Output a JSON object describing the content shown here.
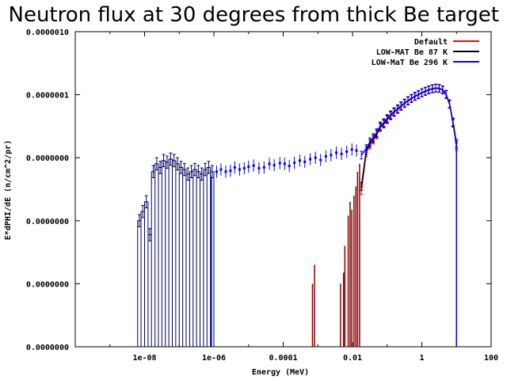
{
  "chart_data": {
    "type": "line",
    "title": "Neutron flux at 30 degrees from thick Be target",
    "xlabel": "Energy (MeV)",
    "ylabel": "E*dPHI/dE (n/cm^2/pr)",
    "x_scale": "log",
    "y_scale": "log",
    "xlim": [
      1e-10,
      100
    ],
    "ylim": [
      1e-11,
      1e-06
    ],
    "x_ticks": [
      {
        "value": 1e-08,
        "label": "1e-08"
      },
      {
        "value": 1e-06,
        "label": "1e-06"
      },
      {
        "value": 0.0001,
        "label": "0.0001"
      },
      {
        "value": 0.01,
        "label": "0.01"
      },
      {
        "value": 1,
        "label": "1"
      },
      {
        "value": 100,
        "label": "100"
      }
    ],
    "y_ticks": [
      {
        "value": 1e-11,
        "label": "0.0000000"
      },
      {
        "value": 1e-10,
        "label": "0.0000000"
      },
      {
        "value": 1e-09,
        "label": "0.0000000"
      },
      {
        "value": 1e-08,
        "label": "0.0000000"
      },
      {
        "value": 1e-07,
        "label": "0.0000001"
      },
      {
        "value": 1e-06,
        "label": "0.0000010"
      }
    ],
    "grid": false,
    "legend": "top-right",
    "series": [
      {
        "name": "Default",
        "color": "#ff0000",
        "style": "errorbars",
        "points": [
          [
            0.018,
            3e-09
          ],
          [
            0.025,
            1.2e-08
          ],
          [
            0.032,
            1.6e-08
          ],
          [
            0.04,
            1.9e-08
          ],
          [
            0.05,
            2.3e-08
          ],
          [
            0.063,
            3e-08
          ],
          [
            0.08,
            3.4e-08
          ],
          [
            0.1,
            4e-08
          ],
          [
            0.126,
            4.6e-08
          ],
          [
            0.158,
            5.2e-08
          ],
          [
            0.2,
            5.8e-08
          ],
          [
            0.251,
            6.5e-08
          ],
          [
            0.316,
            7.2e-08
          ],
          [
            0.398,
            7.9e-08
          ],
          [
            0.501,
            8.6e-08
          ],
          [
            0.631,
            9.3e-08
          ],
          [
            0.794,
            9.9e-08
          ],
          [
            1.0,
            1.06e-07
          ],
          [
            1.26,
            1.12e-07
          ],
          [
            1.58,
            1.18e-07
          ],
          [
            2.0,
            1.23e-07
          ],
          [
            2.51,
            1.26e-07
          ],
          [
            3.16,
            1.25e-07
          ],
          [
            3.98,
            1.18e-07
          ],
          [
            5.01,
            1e-07
          ],
          [
            6.31,
            7e-08
          ],
          [
            7.94,
            3.5e-08
          ],
          [
            10.0,
            1.5e-08
          ]
        ]
      },
      {
        "name": "LOW-MAT Be 87 K",
        "color": "#000000",
        "style": "errorbars",
        "points": [
          [
            0.018,
            3.5e-09
          ],
          [
            0.025,
            1.3e-08
          ],
          [
            0.032,
            1.7e-08
          ],
          [
            0.04,
            2e-08
          ],
          [
            0.05,
            2.4e-08
          ],
          [
            0.063,
            3.1e-08
          ],
          [
            0.08,
            3.5e-08
          ],
          [
            0.1,
            4.1e-08
          ],
          [
            0.126,
            4.7e-08
          ],
          [
            0.158,
            5.3e-08
          ],
          [
            0.2,
            5.9e-08
          ],
          [
            0.251,
            6.6e-08
          ],
          [
            0.316,
            7.3e-08
          ],
          [
            0.398,
            8e-08
          ],
          [
            0.501,
            8.7e-08
          ],
          [
            0.631,
            9.4e-08
          ],
          [
            0.794,
            1e-07
          ],
          [
            1.0,
            1.07e-07
          ],
          [
            1.26,
            1.13e-07
          ],
          [
            1.58,
            1.19e-07
          ],
          [
            2.0,
            1.24e-07
          ],
          [
            2.51,
            1.27e-07
          ],
          [
            3.16,
            1.26e-07
          ],
          [
            3.98,
            1.19e-07
          ],
          [
            5.01,
            1.01e-07
          ],
          [
            6.31,
            7.1e-08
          ],
          [
            7.94,
            3.6e-08
          ],
          [
            10.0,
            1.6e-08
          ]
        ]
      },
      {
        "name": "LOW-MaT Be 296 K",
        "color": "#0000ff",
        "style": "errorbars",
        "points": [
          [
            0.018,
            1.1e-08
          ],
          [
            0.025,
            1.4e-08
          ],
          [
            0.032,
            1.8e-08
          ],
          [
            0.04,
            2.1e-08
          ],
          [
            0.05,
            2.5e-08
          ],
          [
            0.063,
            3.2e-08
          ],
          [
            0.08,
            3.6e-08
          ],
          [
            0.1,
            4.2e-08
          ],
          [
            0.126,
            4.8e-08
          ],
          [
            0.158,
            5.4e-08
          ],
          [
            0.2,
            6e-08
          ],
          [
            0.251,
            6.7e-08
          ],
          [
            0.316,
            7.4e-08
          ],
          [
            0.398,
            8.1e-08
          ],
          [
            0.501,
            8.8e-08
          ],
          [
            0.631,
            9.5e-08
          ],
          [
            0.794,
            1.01e-07
          ],
          [
            1.0,
            1.08e-07
          ],
          [
            1.26,
            1.14e-07
          ],
          [
            1.58,
            1.2e-07
          ],
          [
            2.0,
            1.25e-07
          ],
          [
            2.51,
            1.28e-07
          ],
          [
            3.16,
            1.27e-07
          ],
          [
            3.98,
            1.2e-07
          ],
          [
            5.01,
            1.02e-07
          ],
          [
            6.31,
            7.2e-08
          ],
          [
            7.94,
            3.7e-08
          ],
          [
            10.0,
            1.7e-08
          ]
        ]
      }
    ],
    "histograms": [
      {
        "series": "LOW-MAT Be 87 K",
        "color": "#000060",
        "bins": [
          [
            1e-10,
            6.3e-09,
            0
          ],
          [
            6.3e-09,
            7.9e-09,
            1e-09
          ],
          [
            7.9e-09,
            1e-08,
            1.4e-09
          ],
          [
            1e-08,
            1.26e-08,
            2e-09
          ],
          [
            1.26e-08,
            1.58e-08,
            6e-10
          ],
          [
            1.58e-08,
            2e-08,
            6e-09
          ],
          [
            2e-08,
            2.51e-08,
            8e-09
          ],
          [
            2.51e-08,
            3.16e-08,
            7e-09
          ],
          [
            3.16e-08,
            3.98e-08,
            9e-09
          ],
          [
            3.98e-08,
            5.01e-08,
            8.5e-09
          ],
          [
            5.01e-08,
            6.31e-08,
            9.5e-09
          ],
          [
            6.31e-08,
            7.94e-08,
            9e-09
          ],
          [
            7.94e-08,
            1e-07,
            8e-09
          ],
          [
            1e-07,
            1.26e-07,
            7e-09
          ],
          [
            1.26e-07,
            1.58e-07,
            6.5e-09
          ],
          [
            1.58e-07,
            2e-07,
            5.5e-09
          ],
          [
            2e-07,
            2.51e-07,
            6e-09
          ],
          [
            2.51e-07,
            3.16e-07,
            6.5e-09
          ],
          [
            3.16e-07,
            3.98e-07,
            6e-09
          ],
          [
            3.98e-07,
            5.01e-07,
            5.5e-09
          ],
          [
            5.01e-07,
            6.31e-07,
            6.5e-09
          ],
          [
            6.31e-07,
            7.94e-07,
            7e-09
          ],
          [
            7.94e-07,
            1e-06,
            6e-09
          ]
        ]
      }
    ],
    "spikes": [
      {
        "series": "Default",
        "color": "#8b0000",
        "x": [
          0.0007,
          0.0008,
          0.0045,
          0.0055,
          0.006,
          0.0075,
          0.0085,
          0.0095,
          0.011,
          0.0125,
          0.014,
          0.016
        ],
        "y": [
          1e-10,
          2e-10,
          1e-10,
          1.5e-10,
          4e-10,
          1.2e-09,
          2e-09,
          1.5e-09,
          2.5e-09,
          3.5e-09,
          6e-09,
          8e-09
        ]
      },
      {
        "series": "LOW-MaT Be 296 K",
        "color": "#0000ff",
        "x": [
          8.5e-07
        ],
        "y": [
          5e-09
        ]
      }
    ],
    "scatter_points_blue": [
      [
        1.2e-06,
        6e-09
      ],
      [
        1.6e-06,
        6.5e-09
      ],
      [
        2.2e-06,
        6e-09
      ],
      [
        3e-06,
        6.2e-09
      ],
      [
        4e-06,
        7e-09
      ],
      [
        5.5e-06,
        6.5e-09
      ],
      [
        7.5e-06,
        6.8e-09
      ],
      [
        1e-05,
        7.2e-09
      ],
      [
        1.4e-05,
        7.5e-09
      ],
      [
        2e-05,
        6.8e-09
      ],
      [
        2.8e-05,
        7e-09
      ],
      [
        4e-05,
        8e-09
      ],
      [
        5.5e-05,
        7.6e-09
      ],
      [
        8e-05,
        8.2e-09
      ],
      [
        0.00011,
        8e-09
      ],
      [
        0.00015,
        7.4e-09
      ],
      [
        0.00021,
        8.3e-09
      ],
      [
        0.0003,
        9e-09
      ],
      [
        0.00042,
        8.6e-09
      ],
      [
        0.0006,
        9.5e-09
      ],
      [
        0.00085,
        1e-08
      ],
      [
        0.0012,
        9.2e-09
      ],
      [
        0.0017,
        1.05e-08
      ],
      [
        0.0024,
        1.1e-08
      ],
      [
        0.0034,
        1.2e-08
      ],
      [
        0.0048,
        1.15e-08
      ],
      [
        0.0068,
        1.25e-08
      ],
      [
        0.0096,
        1.35e-08
      ],
      [
        0.013,
        1.3e-08
      ]
    ]
  }
}
